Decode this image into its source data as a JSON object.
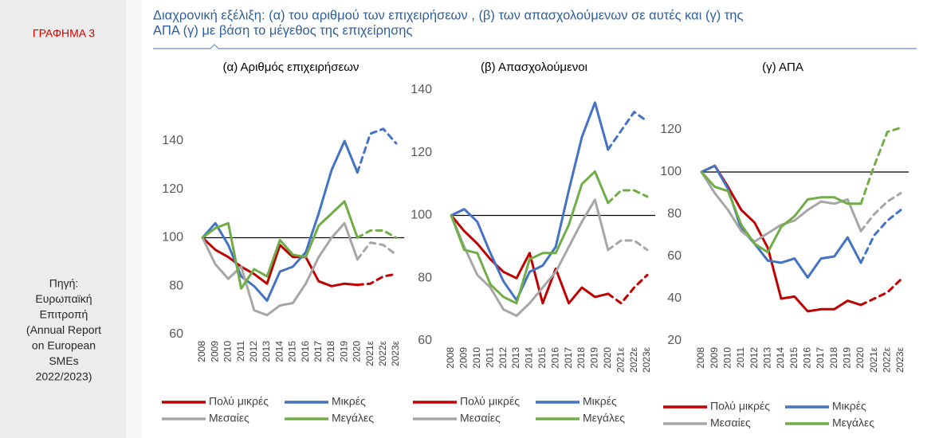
{
  "sidebar": {
    "label": "ΓΡΑΦΗΜΑ 3",
    "source_lines": [
      "Πηγή:",
      "Ευρωπαϊκή",
      "Επιτροπή",
      "(Annual Report",
      "on European",
      "SMEs",
      "2022/2023)"
    ]
  },
  "header": {
    "title_lines": [
      "Διαχρονική εξέλιξη: (α) του αριθμού των επιχειρήσεων , (β) των απασχολούμενων σε αυτές και (γ) της",
      "ΑΠΑ (γ) με βάση το μέγεθος  της επιχείρησης"
    ]
  },
  "chart_data": [
    {
      "type": "line",
      "title": "(α) Αριθμός επιχειρήσεων",
      "categories": [
        "2008",
        "2009",
        "2010",
        "2011",
        "2012",
        "2013",
        "2014",
        "2015",
        "2016",
        "2017",
        "2018",
        "2019",
        "2020",
        "2021ε",
        "2022ε",
        "2023ε"
      ],
      "series": [
        {
          "name": "Πολύ μικρές",
          "color": "#c00000",
          "values": [
            100,
            95,
            92,
            88,
            85,
            81,
            97,
            92,
            92,
            82,
            80,
            81,
            80.5,
            81,
            84,
            85
          ]
        },
        {
          "name": "Μικρές",
          "color": "#4472c4",
          "values": [
            100,
            106,
            97,
            84,
            80,
            74,
            86,
            88,
            94,
            110,
            128,
            140,
            127,
            143,
            145,
            139
          ]
        },
        {
          "name": "Μεσαίες",
          "color": "#a6a6a6",
          "values": [
            100,
            89,
            83,
            88,
            70,
            68,
            72,
            73,
            81,
            92,
            100,
            106,
            91,
            98,
            97,
            93
          ]
        },
        {
          "name": "Μεγάλες",
          "color": "#70ad47",
          "values": [
            100,
            104,
            106,
            79,
            87,
            84,
            99,
            93,
            92,
            105,
            110,
            115,
            100,
            103,
            103,
            100
          ]
        }
      ],
      "ylim": [
        60,
        140
      ],
      "yticks": [
        60,
        80,
        100,
        120,
        140
      ],
      "reference_line": 100,
      "legend": "bottom"
    },
    {
      "type": "line",
      "title": "(β) Απασχολούμενοι",
      "categories": [
        "2008",
        "2009",
        "2010",
        "2011",
        "2012",
        "2013",
        "2014",
        "2015",
        "2016",
        "2017",
        "2018",
        "2019",
        "2020",
        "2021ε",
        "2022ε",
        "2023ε"
      ],
      "series": [
        {
          "name": "Πολύ μικρές",
          "color": "#c00000",
          "values": [
            100,
            95,
            91,
            86,
            82,
            80,
            88,
            72,
            83,
            72,
            77,
            74,
            75,
            72,
            77,
            81
          ]
        },
        {
          "name": "Μικρές",
          "color": "#4472c4",
          "values": [
            100,
            102,
            98,
            88,
            79,
            73,
            82,
            84,
            90,
            108,
            125,
            136,
            121,
            127,
            133,
            130
          ]
        },
        {
          "name": "Μεσαίες",
          "color": "#a6a6a6",
          "values": [
            100,
            90,
            81,
            77,
            70,
            68,
            72,
            77,
            82,
            90,
            98,
            105,
            89,
            92,
            92,
            89
          ]
        },
        {
          "name": "Μεγάλες",
          "color": "#70ad47",
          "values": [
            100,
            89,
            88,
            78,
            74,
            72,
            86,
            88,
            88,
            97,
            110,
            114,
            104,
            108,
            108,
            106
          ]
        }
      ],
      "ylim": [
        60,
        140
      ],
      "yticks": [
        60,
        80,
        100,
        120,
        140
      ],
      "reference_line": 100,
      "legend": "bottom"
    },
    {
      "type": "line",
      "title": "(γ) ΑΠΑ",
      "categories": [
        "2008",
        "2009",
        "2010",
        "2011",
        "2012",
        "2013",
        "2014",
        "2015",
        "2016",
        "2017",
        "2018",
        "2019",
        "2020",
        "2021ε",
        "2022ε",
        "2023ε"
      ],
      "series": [
        {
          "name": "Πολύ μικρές",
          "color": "#c00000",
          "values": [
            100,
            103,
            93,
            82,
            76,
            64,
            40,
            41,
            34,
            35,
            35,
            39,
            37,
            40,
            43,
            49
          ]
        },
        {
          "name": "Μικρές",
          "color": "#4472c4",
          "values": [
            100,
            103,
            92,
            73,
            66,
            58,
            57,
            59,
            50,
            59,
            60,
            69,
            57,
            70,
            77,
            82
          ]
        },
        {
          "name": "Μεσαίες",
          "color": "#a6a6a6",
          "values": [
            100,
            90,
            82,
            72,
            67,
            71,
            75,
            77,
            82,
            86,
            85,
            87,
            72,
            80,
            86,
            90
          ]
        },
        {
          "name": "Μεγάλες",
          "color": "#70ad47",
          "values": [
            100,
            93,
            91,
            75,
            66,
            62,
            74,
            79,
            87,
            88,
            88,
            85,
            85,
            103,
            119,
            121
          ]
        }
      ],
      "ylim": [
        20,
        120
      ],
      "yticks": [
        20,
        40,
        60,
        80,
        100,
        120
      ],
      "reference_line": 100,
      "legend": "bottom"
    }
  ]
}
